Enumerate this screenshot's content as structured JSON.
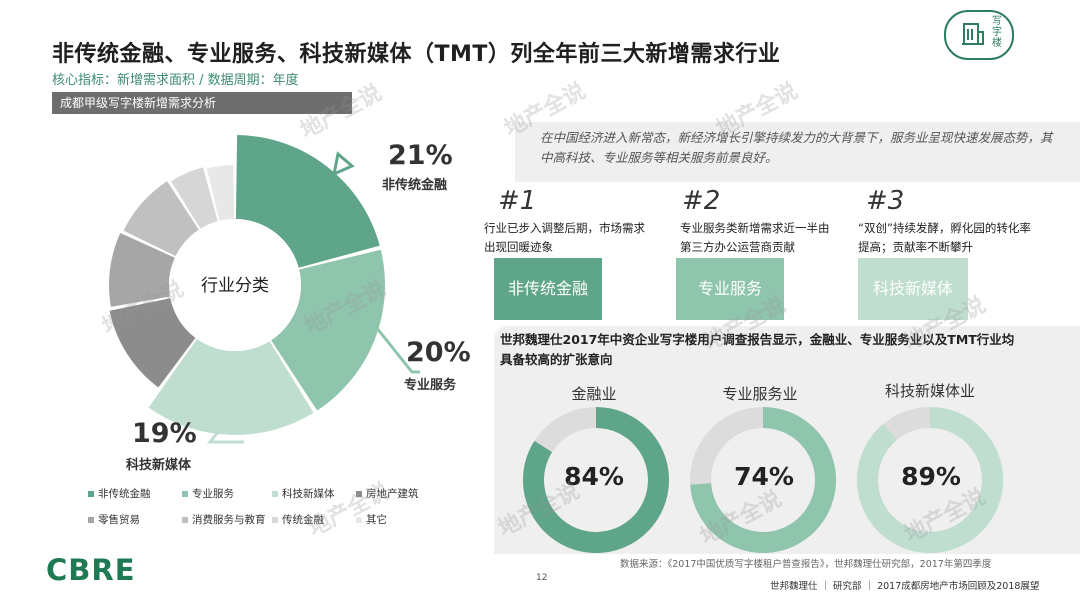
{
  "header": {
    "title": "非传统金融、专业服务、科技新媒体（TMT）列全年前三大新增需求行业",
    "subtitle": "核心指标：新增需求面积 / 数据周期：年度",
    "logo_text": "写字楼"
  },
  "section_tag": "成都甲级写字楼新增需求分析",
  "chart_data": [
    {
      "type": "pie",
      "center_label": "行业分类",
      "categories": [
        "非传统金融",
        "专业服务",
        "科技新媒体",
        "房地产建筑",
        "零售贸易",
        "消费服务与教育",
        "传统金融",
        "其它"
      ],
      "values": [
        21,
        20,
        19,
        12,
        10,
        9,
        5,
        4
      ],
      "colors": [
        "#5fa589",
        "#8fc4ad",
        "#bfded0",
        "#8c8c8c",
        "#a6a6a6",
        "#c0c0c0",
        "#d6d6d6",
        "#e8e8e8"
      ],
      "callouts": [
        {
          "pct": "21%",
          "label": "非传统金融"
        },
        {
          "pct": "20%",
          "label": "专业服务"
        },
        {
          "pct": "19%",
          "label": "科技新媒体"
        }
      ],
      "legend": [
        "非传统金融",
        "专业服务",
        "科技新媒体",
        "房地产建筑",
        "零售贸易",
        "消费服务与教育",
        "传统金融",
        "其它"
      ]
    },
    {
      "type": "pie",
      "title": "金融业",
      "values": [
        84,
        16
      ],
      "label": "84%",
      "color": "#5fa589"
    },
    {
      "type": "pie",
      "title": "专业服务业",
      "values": [
        74,
        26
      ],
      "label": "74%",
      "color": "#8fc4ad"
    },
    {
      "type": "pie",
      "title": "科技新媒体业",
      "values": [
        89,
        11
      ],
      "label": "89%",
      "color": "#bfded0"
    }
  ],
  "quote": "在中国经济进入新常态，新经济增长引擎持续发力的大背景下，服务业呈现快速发展态势，其中高科技、专业服务等相关服务前景良好。",
  "ranks": [
    {
      "num": "#1",
      "desc": "行业已步入调整后期，市场需求出现回暖迹象",
      "box": "非传统金融",
      "color": "#5fa589"
    },
    {
      "num": "#2",
      "desc": "专业服务类新增需求近一半由第三方办公运营商贡献",
      "box": "专业服务",
      "color": "#8fc4ad"
    },
    {
      "num": "#3",
      "desc": "“双创”持续发酵，孵化园的转化率提高；贡献率不断攀升",
      "box": "科技新媒体",
      "color": "#bfded0"
    }
  ],
  "survey_text": "世邦魏理仕2017年中资企业写字楼用户调查报告显示，金融业、专业服务业以及TMT行业均具备较高的扩张意向",
  "source": "数据来源：《2017中国优质写字楼租户普查报告》，世邦魏理仕研究部，2017年第四季度",
  "brand": "CBRE",
  "page_number": "12",
  "footer": "世邦魏理仕 ｜ 研究部 ｜ 2017成都房地产市场回顾及2018展望",
  "watermark": "地产全说"
}
